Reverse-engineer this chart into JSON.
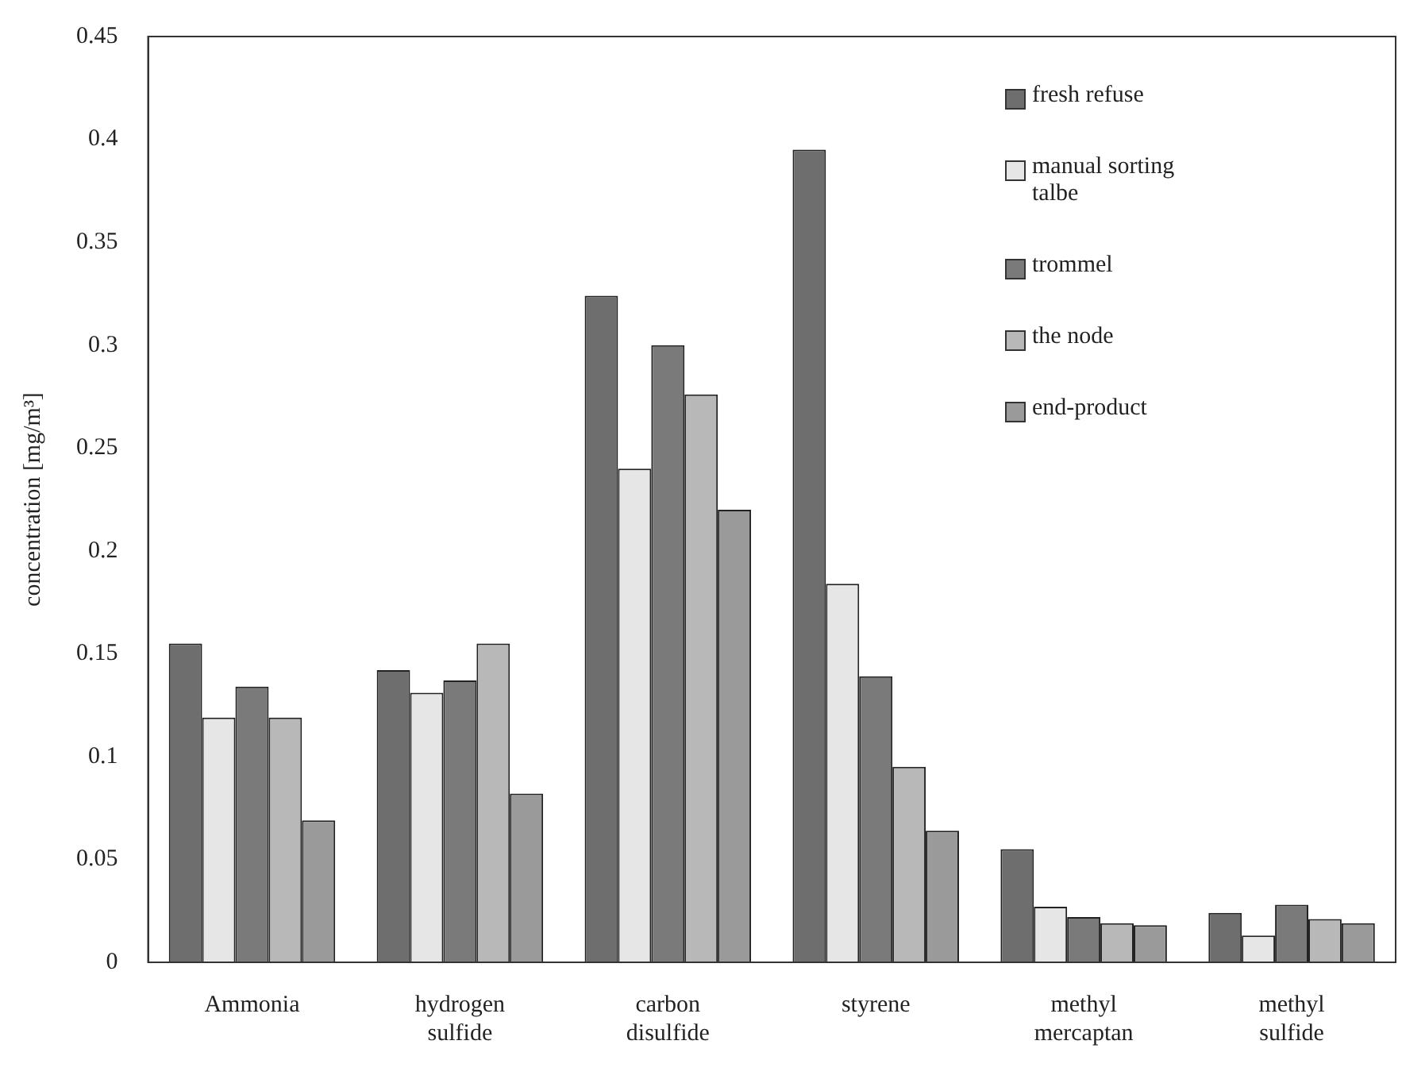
{
  "chart_data": {
    "type": "bar",
    "ylabel": "concentration [mg/m³]",
    "categories": [
      "Ammonia",
      "hydrogen sulfide",
      "carbon disulfide",
      "styrene",
      "methyl mercaptan",
      "methyl sulfide"
    ],
    "series": [
      {
        "name": "fresh refuse",
        "color": "#6e6e6e",
        "values": [
          0.155,
          0.142,
          0.324,
          0.395,
          0.055,
          0.024
        ]
      },
      {
        "name": "manual sorting talbe",
        "color": "#e6e6e6",
        "values": [
          0.119,
          0.131,
          0.24,
          0.184,
          0.027,
          0.013
        ]
      },
      {
        "name": "trommel",
        "color": "#7a7a7a",
        "values": [
          0.134,
          0.137,
          0.3,
          0.139,
          0.022,
          0.028
        ]
      },
      {
        "name": "the node",
        "color": "#b8b8b8",
        "values": [
          0.119,
          0.155,
          0.276,
          0.095,
          0.019,
          0.021
        ]
      },
      {
        "name": "end-product",
        "color": "#9a9a9a",
        "values": [
          0.069,
          0.082,
          0.22,
          0.064,
          0.018,
          0.019
        ]
      }
    ],
    "ylim": [
      0,
      0.45
    ],
    "yticks": [
      0,
      0.05,
      0.1,
      0.15,
      0.2,
      0.25,
      0.3,
      0.35,
      0.4,
      0.45
    ],
    "grid": false,
    "legend": "top right"
  }
}
